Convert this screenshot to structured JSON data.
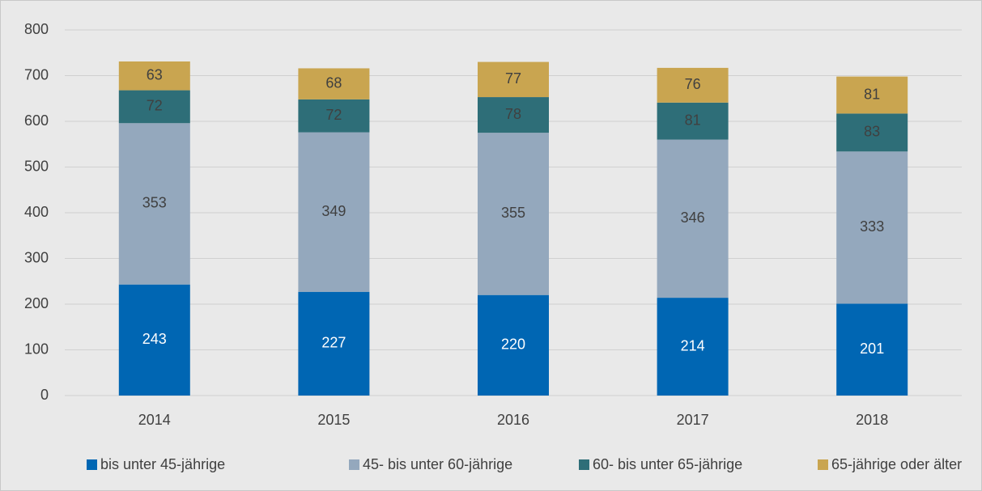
{
  "chart_data": {
    "type": "stacked_bar",
    "categories": [
      "2014",
      "2015",
      "2016",
      "2017",
      "2018"
    ],
    "series": [
      {
        "name": "bis unter 45-jährige",
        "color": "#0066b3",
        "values": [
          243,
          227,
          220,
          214,
          201
        ]
      },
      {
        "name": "45- bis unter 60-jährige",
        "color": "#94a8bd",
        "values": [
          353,
          349,
          355,
          346,
          333
        ]
      },
      {
        "name": "60- bis unter 65-jährige",
        "color": "#2e6e78",
        "values": [
          72,
          72,
          78,
          81,
          83
        ]
      },
      {
        "name": "65-jährige oder älter",
        "color": "#c9a550",
        "values": [
          63,
          68,
          77,
          76,
          81
        ]
      }
    ],
    "ylim": [
      0,
      800
    ],
    "yticks": [
      0,
      100,
      200,
      300,
      400,
      500,
      600,
      700,
      800
    ],
    "grid": true,
    "legend": "bottom"
  }
}
